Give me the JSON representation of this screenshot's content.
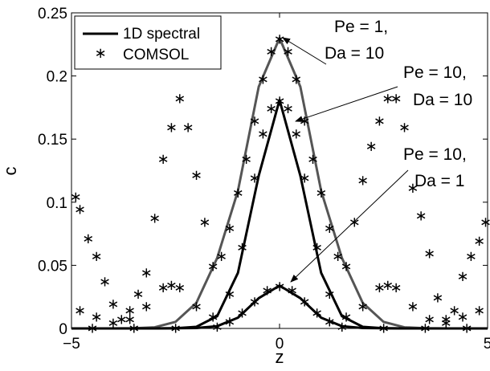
{
  "chart_data": {
    "type": "line",
    "xlabel": "z",
    "ylabel": "c",
    "xlim": [
      -5,
      5
    ],
    "ylim": [
      0,
      0.25
    ],
    "x_ticks": [
      -5,
      0,
      5
    ],
    "x_tick_labels": [
      "−5",
      "0",
      "5"
    ],
    "y_ticks": [
      0,
      0.05,
      0.1,
      0.15,
      0.2,
      0.25
    ],
    "y_tick_labels": [
      "0",
      "0.05",
      "0.1",
      "0.15",
      "0.2",
      "0.25"
    ],
    "grid": false,
    "legend": {
      "placement": "top-left",
      "entries": [
        {
          "label": "1D spectral",
          "marker": "line"
        },
        {
          "label": "COMSOL",
          "marker": "asterisk"
        }
      ]
    },
    "series": [
      {
        "kind": "line",
        "color": "#555555",
        "x": [
          -5,
          -4.5,
          -4,
          -3.5,
          -3,
          -2.5,
          -2,
          -1.5,
          -1,
          -0.5,
          0,
          0.5,
          1,
          1.5,
          2,
          2.5,
          3,
          3.5,
          4,
          4.5,
          5
        ],
        "y": [
          0,
          0,
          0,
          0.0001,
          0.0009,
          0.0052,
          0.0202,
          0.0557,
          0.109,
          0.1915,
          0.23,
          0.1915,
          0.109,
          0.0557,
          0.0202,
          0.0052,
          0.0009,
          0.0001,
          0,
          0,
          0
        ]
      },
      {
        "kind": "line",
        "color": "#000000",
        "x": [
          -5,
          -4,
          -3,
          -2.5,
          -2,
          -1.5,
          -1,
          -0.5,
          0,
          0.5,
          1,
          1.5,
          2,
          2.5,
          3,
          4,
          5
        ],
        "y": [
          0,
          0,
          0,
          0.0002,
          0.0013,
          0.0097,
          0.044,
          0.121,
          0.181,
          0.121,
          0.044,
          0.0097,
          0.0013,
          0.0002,
          0,
          0,
          0
        ]
      },
      {
        "kind": "line",
        "color": "#000000",
        "x": [
          -5,
          -3,
          -2,
          -1.5,
          -1,
          -0.5,
          0,
          0.5,
          1,
          1.5,
          2,
          3,
          5
        ],
        "y": [
          0,
          0,
          0.0003,
          0.0018,
          0.0085,
          0.024,
          0.034,
          0.024,
          0.0085,
          0.0018,
          0.0003,
          0,
          0
        ]
      },
      {
        "kind": "scatter",
        "marker": "asterisk",
        "x": [
          -4.9,
          -4.8,
          -4.6,
          -4.4,
          -4.2,
          -4.0,
          -3.8,
          -3.6,
          -3.4,
          -3.2,
          -3.0,
          -2.8,
          -2.6,
          -2.4,
          -2.2,
          -2.0,
          -1.8,
          -1.6,
          -1.4,
          -1.2,
          -1.0,
          -0.8,
          -0.6,
          -0.4,
          -0.2,
          0,
          0.2,
          0.4,
          0.6,
          0.8,
          1.0,
          1.2,
          1.4,
          1.6,
          1.8,
          2.0,
          2.2,
          2.4,
          2.6,
          2.8,
          3.0,
          3.2,
          3.4,
          3.6,
          3.8,
          4.0,
          4.2,
          4.4,
          4.6,
          4.8,
          4.95
        ],
        "y": [
          0.105,
          0.095,
          0.072,
          0.058,
          0.038,
          0.02,
          0.008,
          0.015,
          0.028,
          0.045,
          0.088,
          0.135,
          0.16,
          0.183,
          0.16,
          0.122,
          0.085,
          0.05,
          0.058,
          0.08,
          0.108,
          0.135,
          0.165,
          0.198,
          0.22,
          0.23,
          0.22,
          0.198,
          0.165,
          0.135,
          0.108,
          0.08,
          0.058,
          0.05,
          0.085,
          0.118,
          0.145,
          0.165,
          0.183,
          0.183,
          0.16,
          0.112,
          0.09,
          0.06,
          0.025,
          0.008,
          0.015,
          0.042,
          0.058,
          0.07,
          0.085
        ]
      },
      {
        "kind": "scatter",
        "marker": "asterisk",
        "x": [
          -4.8,
          -4.4,
          -4.0,
          -3.6,
          -3.2,
          -2.8,
          -2.6,
          -2.4,
          -2.0,
          -1.6,
          -1.2,
          -0.9,
          -0.6,
          -0.4,
          -0.2,
          0,
          0.2,
          0.4,
          0.6,
          0.9,
          1.2,
          1.6,
          2.0,
          2.4,
          2.6,
          2.8,
          3.2,
          3.6,
          4.0,
          4.4,
          4.8
        ],
        "y": [
          0.015,
          0.01,
          0.005,
          0.008,
          0.018,
          0.033,
          0.035,
          0.033,
          0.018,
          0.01,
          0.028,
          0.065,
          0.12,
          0.155,
          0.175,
          0.181,
          0.175,
          0.155,
          0.12,
          0.065,
          0.028,
          0.01,
          0.018,
          0.033,
          0.035,
          0.033,
          0.018,
          0.008,
          0.005,
          0.01,
          0.015
        ]
      },
      {
        "kind": "scatter",
        "marker": "asterisk",
        "x": [
          -4.5,
          -3.5,
          -2.5,
          -1.5,
          -1.2,
          -0.9,
          -0.6,
          -0.3,
          0,
          0.3,
          0.6,
          0.9,
          1.2,
          1.5,
          2.5,
          3.5,
          4.5
        ],
        "y": [
          0.001,
          0.001,
          0.001,
          0.002,
          0.006,
          0.013,
          0.022,
          0.031,
          0.034,
          0.031,
          0.022,
          0.013,
          0.006,
          0.002,
          0.001,
          0.001,
          0.001
        ]
      }
    ],
    "annotations": [
      {
        "lines": [
          "Pe = 1,",
          "Da = 10"
        ],
        "point": [
          0.05,
          0.228
        ]
      },
      {
        "lines": [
          "Pe = 10,",
          "Da = 10"
        ],
        "point": [
          0.45,
          0.176
        ]
      },
      {
        "lines": [
          "Pe = 10,",
          "Da = 1"
        ],
        "point": [
          0.2,
          0.035
        ]
      }
    ]
  }
}
